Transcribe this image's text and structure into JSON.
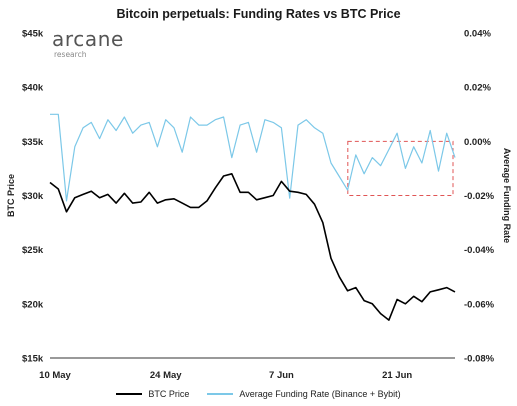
{
  "chart_data": {
    "type": "line",
    "title": "Bitcoin perpetuals: Funding Rates vs BTC Price",
    "xlabel": "",
    "ylabel": "BTC Price",
    "y2label": "Average Funding Rate",
    "x_ticks": [
      "10 May",
      "24 May",
      "7 Jun",
      "21 Jun"
    ],
    "y_ticks": [
      "$15k",
      "$20k",
      "$25k",
      "$30k",
      "$35k",
      "$40k",
      "$45k"
    ],
    "y2_ticks": [
      "-0.08%",
      "-0.06%",
      "-0.04%",
      "-0.02%",
      "0.00%",
      "0.02%",
      "0.04%"
    ],
    "ylim": [
      15000,
      45000
    ],
    "y2lim": [
      -0.08,
      0.04
    ],
    "xlim": [
      "2022-05-10",
      "2022-06-28"
    ],
    "legend_position": "bottom",
    "annotation": "dashed red box highlighting negative funding rates, approx. 16–28 Jun",
    "series": [
      {
        "name": "BTC Price",
        "axis": "left",
        "color": "#000000",
        "x": [
          "2022-05-10",
          "2022-05-11",
          "2022-05-12",
          "2022-05-13",
          "2022-05-14",
          "2022-05-15",
          "2022-05-16",
          "2022-05-17",
          "2022-05-18",
          "2022-05-19",
          "2022-05-20",
          "2022-05-21",
          "2022-05-22",
          "2022-05-23",
          "2022-05-24",
          "2022-05-25",
          "2022-05-26",
          "2022-05-27",
          "2022-05-28",
          "2022-05-29",
          "2022-05-30",
          "2022-05-31",
          "2022-06-01",
          "2022-06-02",
          "2022-06-03",
          "2022-06-04",
          "2022-06-05",
          "2022-06-06",
          "2022-06-07",
          "2022-06-08",
          "2022-06-09",
          "2022-06-10",
          "2022-06-11",
          "2022-06-12",
          "2022-06-13",
          "2022-06-14",
          "2022-06-15",
          "2022-06-16",
          "2022-06-17",
          "2022-06-18",
          "2022-06-19",
          "2022-06-20",
          "2022-06-21",
          "2022-06-22",
          "2022-06-23",
          "2022-06-24",
          "2022-06-25",
          "2022-06-26",
          "2022-06-27",
          "2022-06-28"
        ],
        "values": [
          31200,
          30600,
          28500,
          29800,
          30100,
          30400,
          29800,
          30100,
          29300,
          30200,
          29300,
          29400,
          30300,
          29300,
          29600,
          29700,
          29300,
          28900,
          28900,
          29500,
          30700,
          31800,
          32000,
          30300,
          30300,
          29600,
          29800,
          30000,
          31300,
          30400,
          30300,
          30100,
          29200,
          27500,
          24200,
          22500,
          21200,
          21500,
          20300,
          20000,
          19100,
          18500,
          20400,
          20000,
          20700,
          20200,
          21100,
          21300,
          21500,
          21100
        ]
      },
      {
        "name": "Average Funding Rate (Binance + Bybit)",
        "axis": "right",
        "color": "#7cc8e8",
        "x": [
          "2022-05-10",
          "2022-05-11",
          "2022-05-12",
          "2022-05-13",
          "2022-05-14",
          "2022-05-15",
          "2022-05-16",
          "2022-05-17",
          "2022-05-18",
          "2022-05-19",
          "2022-05-20",
          "2022-05-21",
          "2022-05-22",
          "2022-05-23",
          "2022-05-24",
          "2022-05-25",
          "2022-05-26",
          "2022-05-27",
          "2022-05-28",
          "2022-05-29",
          "2022-05-30",
          "2022-05-31",
          "2022-06-01",
          "2022-06-02",
          "2022-06-03",
          "2022-06-04",
          "2022-06-05",
          "2022-06-06",
          "2022-06-07",
          "2022-06-08",
          "2022-06-09",
          "2022-06-10",
          "2022-06-11",
          "2022-06-12",
          "2022-06-13",
          "2022-06-14",
          "2022-06-15",
          "2022-06-16",
          "2022-06-17",
          "2022-06-18",
          "2022-06-19",
          "2022-06-20",
          "2022-06-21",
          "2022-06-22",
          "2022-06-23",
          "2022-06-24",
          "2022-06-25",
          "2022-06-26",
          "2022-06-27",
          "2022-06-28"
        ],
        "values": [
          0.01,
          0.01,
          -0.022,
          -0.002,
          0.005,
          0.007,
          0.001,
          0.008,
          0.004,
          0.009,
          0.003,
          0.006,
          0.007,
          -0.002,
          0.008,
          0.005,
          -0.004,
          0.009,
          0.006,
          0.006,
          0.008,
          0.009,
          -0.006,
          0.006,
          0.007,
          -0.004,
          0.008,
          0.007,
          0.005,
          -0.021,
          0.006,
          0.008,
          0.005,
          0.003,
          -0.008,
          -0.013,
          -0.018,
          -0.005,
          -0.012,
          -0.006,
          -0.009,
          -0.003,
          0.003,
          -0.01,
          -0.002,
          -0.008,
          0.004,
          -0.011,
          0.003,
          -0.006
        ]
      }
    ]
  },
  "logo": {
    "name": "arcane",
    "sub": "research"
  }
}
